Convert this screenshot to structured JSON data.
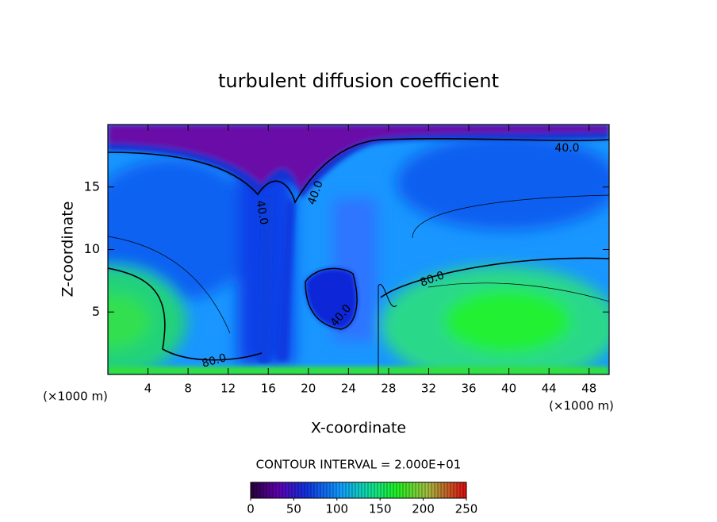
{
  "chart_data": {
    "type": "contour",
    "title": "turbulent diffusion coefficient",
    "x_label": "X-coordinate",
    "y_label": "Z-coordinate",
    "x_unit": "(×1000 m)",
    "xlim": [
      0,
      50
    ],
    "xticks": [
      4,
      8,
      12,
      16,
      20,
      24,
      28,
      32,
      36,
      40,
      44,
      48
    ],
    "ylim": [
      0,
      20
    ],
    "yticks": [
      5,
      10,
      15
    ],
    "contour_labels": [
      "40.0",
      "40.0",
      "40.0",
      "40.0",
      "80.0",
      "80.0"
    ],
    "contour_interval_text": "CONTOUR INTERVAL = 2.000E+01",
    "colorbar": {
      "lim": [
        0,
        250
      ],
      "ticks": [
        0,
        50,
        100,
        150,
        200,
        250
      ]
    }
  }
}
